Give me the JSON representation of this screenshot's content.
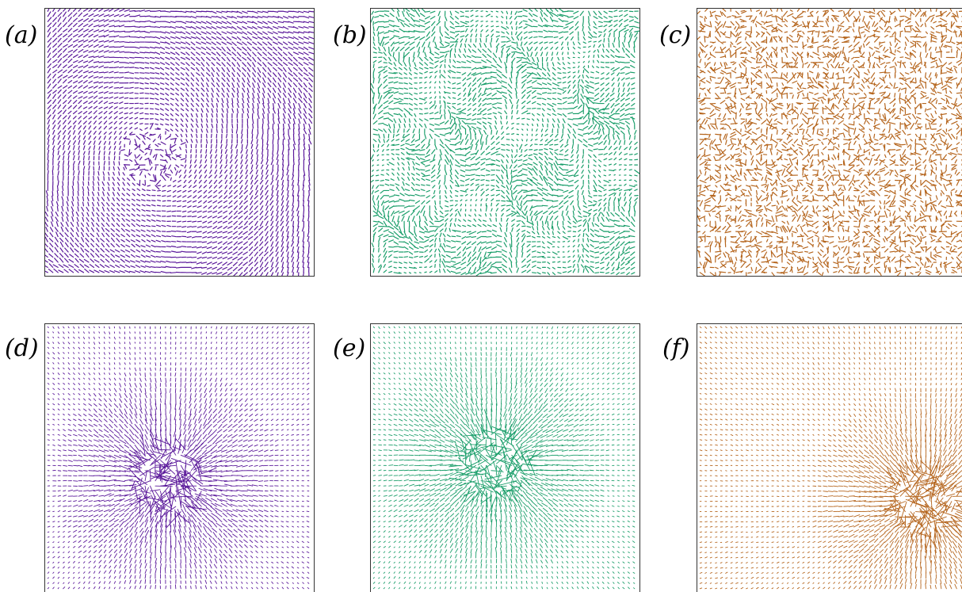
{
  "panels": [
    {
      "id": "a",
      "label": "(a)",
      "color": "#5a189a",
      "pattern": "swirl"
    },
    {
      "id": "b",
      "label": "(b)",
      "color": "#1a9e6a",
      "pattern": "turbulent"
    },
    {
      "id": "c",
      "label": "(c)",
      "color": "#b5651d",
      "pattern": "random"
    },
    {
      "id": "d",
      "label": "(d)",
      "color": "#5a189a",
      "pattern": "radial"
    },
    {
      "id": "e",
      "label": "(e)",
      "color": "#1a9e6a",
      "pattern": "radial"
    },
    {
      "id": "f",
      "label": "(f)",
      "color": "#b5651d",
      "pattern": "radial"
    }
  ]
}
